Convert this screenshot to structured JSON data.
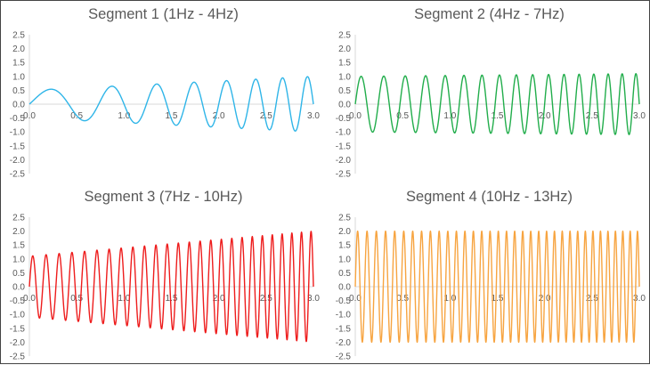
{
  "chart_data": [
    {
      "type": "line",
      "title": "Segment 1 (1Hz - 4Hz)",
      "color": "#2fb5e8",
      "signal": {
        "kind": "linear-chirp",
        "f_start_hz": 1,
        "f_end_hz": 4,
        "amplitude_start": 0.5,
        "amplitude_end": 1.0
      },
      "xlim": [
        0,
        3
      ],
      "ylim": [
        -2.5,
        2.5
      ],
      "x_ticks": [
        "0.0",
        "0.5",
        "1.0",
        "1.5",
        "2.0",
        "2.5",
        "3.0"
      ],
      "y_ticks": [
        "2.5",
        "2.0",
        "1.5",
        "1.0",
        "0.5",
        "0.0",
        "-0.5",
        "-1.0",
        "-1.5",
        "-2.0",
        "-2.5"
      ],
      "grid": false
    },
    {
      "type": "line",
      "title": "Segment 2 (4Hz - 7Hz)",
      "color": "#21ad4b",
      "signal": {
        "kind": "linear-chirp",
        "f_start_hz": 4,
        "f_end_hz": 7,
        "amplitude_start": 1.0,
        "amplitude_end": 1.1
      },
      "xlim": [
        0,
        3
      ],
      "ylim": [
        -2.5,
        2.5
      ],
      "x_ticks": [
        "0.0",
        "0.5",
        "1.0",
        "1.5",
        "2.0",
        "2.5",
        "3.0"
      ],
      "y_ticks": [
        "2.5",
        "2.0",
        "1.5",
        "1.0",
        "0.5",
        "0.0",
        "-0.5",
        "-1.0",
        "-1.5",
        "-2.0",
        "-2.5"
      ],
      "grid": false
    },
    {
      "type": "line",
      "title": "Segment 3 (7Hz - 10Hz)",
      "color": "#ee1c1c",
      "signal": {
        "kind": "linear-chirp",
        "f_start_hz": 7,
        "f_end_hz": 10,
        "amplitude_start": 1.1,
        "amplitude_end": 2.0
      },
      "xlim": [
        0,
        3
      ],
      "ylim": [
        -2.5,
        2.5
      ],
      "x_ticks": [
        "0.0",
        "0.5",
        "1.0",
        "1.5",
        "2.0",
        "2.5",
        "3.0"
      ],
      "y_ticks": [
        "2.5",
        "2.0",
        "1.5",
        "1.0",
        "0.5",
        "0.0",
        "-0.5",
        "-1.0",
        "-1.5",
        "-2.0",
        "-2.5"
      ],
      "grid": false
    },
    {
      "type": "line",
      "title": "Segment 4 (10Hz - 13Hz)",
      "color": "#f7a440",
      "signal": {
        "kind": "linear-chirp",
        "f_start_hz": 10,
        "f_end_hz": 13,
        "amplitude_start": 2.0,
        "amplitude_end": 2.0
      },
      "xlim": [
        0,
        3
      ],
      "ylim": [
        -2.5,
        2.5
      ],
      "x_ticks": [
        "0.0",
        "0.5",
        "1.0",
        "1.5",
        "2.0",
        "2.5",
        "3.0"
      ],
      "y_ticks": [
        "2.5",
        "2.0",
        "1.5",
        "1.0",
        "0.5",
        "0.0",
        "-0.5",
        "-1.0",
        "-1.5",
        "-2.0",
        "-2.5"
      ],
      "grid": false
    }
  ]
}
